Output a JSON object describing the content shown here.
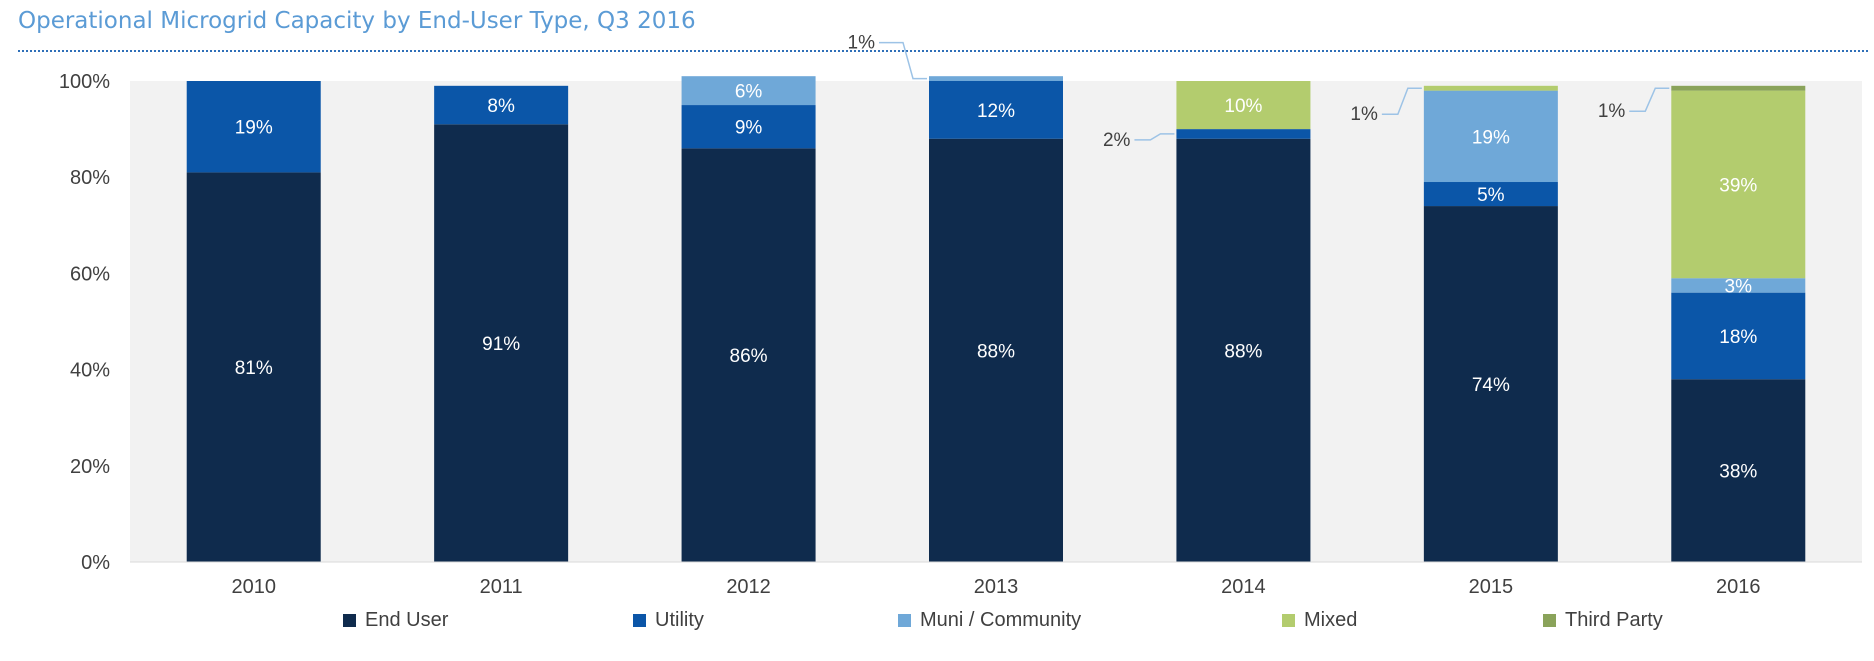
{
  "title": "Operational Microgrid Capacity by End-User Type, Q3 2016",
  "chart_data": {
    "type": "bar",
    "stacked": true,
    "percent": true,
    "title": "Operational Microgrid Capacity by End-User Type, Q3 2016",
    "categories": [
      "2010",
      "2011",
      "2012",
      "2013",
      "2014",
      "2015",
      "2016"
    ],
    "ylim": [
      0,
      100
    ],
    "yticks": [
      "0%",
      "20%",
      "40%",
      "60%",
      "80%",
      "100%"
    ],
    "grid": false,
    "legend_position": "bottom",
    "background": "#f2f2f2",
    "series": [
      {
        "name": "End User",
        "color": "#0f2b4d",
        "values": [
          81,
          91,
          86,
          88,
          88,
          74,
          38
        ],
        "labels": [
          "81%",
          "91%",
          "86%",
          "88%",
          "88%",
          "74%",
          "38%"
        ]
      },
      {
        "name": "Utility",
        "color": "#0b56a8",
        "values": [
          19,
          8,
          9,
          12,
          2,
          5,
          18
        ],
        "labels": [
          "19%",
          "8%",
          "9%",
          "12%",
          "2%",
          "5%",
          "18%"
        ]
      },
      {
        "name": "Muni / Community",
        "color": "#6fa8d8",
        "values": [
          0,
          0,
          6,
          1,
          0,
          19,
          3
        ],
        "labels": [
          "",
          "",
          "6%",
          "1%",
          "",
          "19%",
          "3%"
        ]
      },
      {
        "name": "Mixed",
        "color": "#b3cc6e",
        "values": [
          0,
          0,
          0,
          0,
          10,
          1,
          39
        ],
        "labels": [
          "",
          "",
          "",
          "",
          "10%",
          "1%",
          "39%"
        ]
      },
      {
        "name": "Third Party",
        "color": "#8aa35a",
        "values": [
          0,
          0,
          0,
          0,
          0,
          0,
          1
        ],
        "labels": [
          "",
          "",
          "",
          "",
          "",
          "",
          "1%"
        ]
      }
    ]
  }
}
